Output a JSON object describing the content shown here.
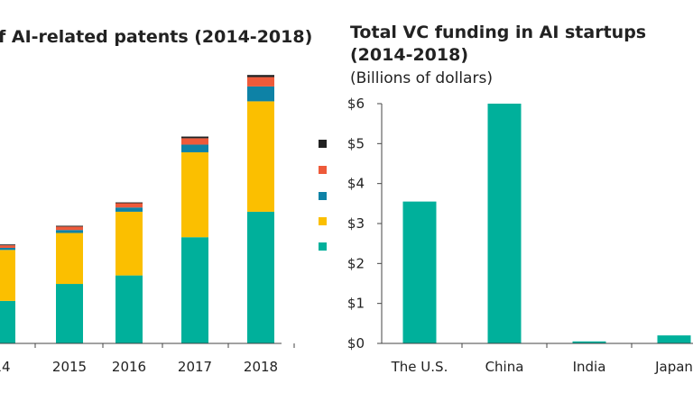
{
  "chart_data": [
    {
      "type": "bar",
      "stacked": true,
      "title": "f AI-related patents (2014-2018)",
      "categories": [
        "14",
        "2015",
        "2016",
        "2017",
        "2018"
      ],
      "series": [
        {
          "name": "",
          "color": "#00b09b",
          "values": [
            1.0,
            1.4,
            1.6,
            2.5,
            3.1
          ]
        },
        {
          "name": "",
          "color": "#fbbf00",
          "values": [
            1.2,
            1.2,
            1.5,
            2.0,
            2.6
          ]
        },
        {
          "name": "",
          "color": "#0e82a6",
          "values": [
            0.05,
            0.07,
            0.1,
            0.18,
            0.35
          ]
        },
        {
          "name": "",
          "color": "#ee5a3a",
          "values": [
            0.06,
            0.08,
            0.1,
            0.15,
            0.22
          ]
        },
        {
          "name": "",
          "color": "#222222",
          "values": [
            0.02,
            0.02,
            0.02,
            0.04,
            0.05
          ]
        }
      ],
      "ylim": [
        0,
        6.6
      ],
      "legend": "right"
    },
    {
      "type": "bar",
      "title": "Total VC funding in AI startups",
      "title_line2": "(2014-2018)",
      "subtitle": "(Billions of dollars)",
      "categories": [
        "The U.S.",
        "China",
        "India",
        "Japan"
      ],
      "values": [
        3.55,
        6.0,
        0.05,
        0.2
      ],
      "ylim": [
        0,
        6
      ],
      "yticks": [
        "$0",
        "$1",
        "$2",
        "$3",
        "$4",
        "$5",
        "$6"
      ],
      "color": "#00b09b"
    }
  ]
}
